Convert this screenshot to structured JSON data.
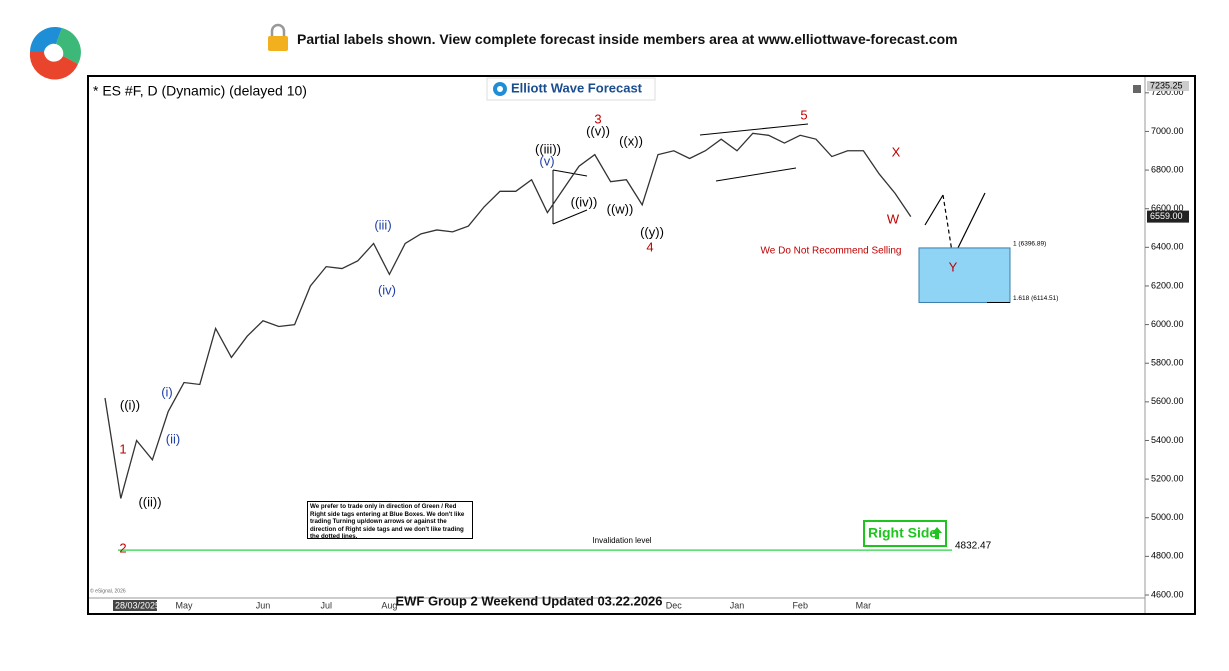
{
  "header": {
    "text": "Partial labels shown. View complete forecast inside members area at www.elliottwave-forecast.com"
  },
  "chart_data": {
    "type": "line",
    "title": "* ES #F, D (Dynamic) (delayed 10)",
    "logo": "Elliott Wave Forecast",
    "footer": "EWF Group 2 Weekend Updated 03.22.2026",
    "copyright": "© eSignal, 2026",
    "categories": [
      "28/03/2025",
      null,
      null,
      null,
      null,
      "May",
      null,
      null,
      null,
      null,
      "Jun",
      null,
      null,
      null,
      "Jul",
      null,
      null,
      null,
      "Aug",
      null,
      null,
      null,
      null,
      null,
      null,
      null,
      null,
      null,
      null,
      null,
      null,
      null,
      null,
      null,
      null,
      null,
      "Dec",
      null,
      null,
      null,
      "Jan",
      null,
      null,
      null,
      "Feb",
      null,
      null,
      null,
      "Mar",
      null,
      null,
      null
    ],
    "series": [
      {
        "name": "ES #F",
        "color": "#333333",
        "values": [
          5620,
          5100,
          5400,
          5300,
          5550,
          5700,
          5690,
          5980,
          5830,
          5940,
          6020,
          5990,
          6000,
          6200,
          6300,
          6290,
          6330,
          6420,
          6260,
          6420,
          6470,
          6490,
          6480,
          6510,
          6610,
          6690,
          6690,
          6750,
          6580,
          6700,
          6820,
          6880,
          6740,
          6750,
          6620,
          6880,
          6900,
          6860,
          6900,
          6960,
          6900,
          6990,
          6980,
          6940,
          6980,
          6960,
          6870,
          6900,
          6900,
          6780,
          6680,
          6559
        ]
      }
    ],
    "ylim": [
      4600,
      7235.25
    ],
    "yticks": [
      {
        "value": 4600,
        "label": "4600.00"
      },
      {
        "value": 4800,
        "label": "4800.00"
      },
      {
        "value": 5000,
        "label": "5000.00"
      },
      {
        "value": 5200,
        "label": "5200.00"
      },
      {
        "value": 5400,
        "label": "5400.00"
      },
      {
        "value": 5600,
        "label": "5600.00"
      },
      {
        "value": 5800,
        "label": "5800.00"
      },
      {
        "value": 6000,
        "label": "6000.00"
      },
      {
        "value": 6200,
        "label": "6200.00"
      },
      {
        "value": 6400,
        "label": "6400.00"
      },
      {
        "value": 6600,
        "label": "6600.00"
      },
      {
        "value": 6800,
        "label": "6800.00"
      },
      {
        "value": 7000,
        "label": "7000.00"
      },
      {
        "value": 7200,
        "label": "7200.00"
      }
    ],
    "last_price": {
      "value": 6559,
      "label": "6559.00"
    },
    "target_box": {
      "top": {
        "value": 6396.89,
        "label": "1 (6396.89)"
      },
      "bottom": {
        "value": 6114.51,
        "label": "1.618 (6114.51)"
      },
      "color": "#8fd3f5"
    },
    "invalidation": {
      "value": 4832.47,
      "text": "Invalidation level",
      "color": "#4cd964"
    },
    "warning": "We Do Not Recommend Selling",
    "right_side": "Right Side",
    "disclaimer": "We prefer to trade only in direction of Green / Red Right side tags entering at Blue Boxes. We don't like trading Turning up/down arrows or against the direction of Right side tags and we don't like trading the dotted lines.",
    "annotations": [
      {
        "text": "((i))",
        "color": "#000000"
      },
      {
        "text": "1",
        "color": "#c00000"
      },
      {
        "text": "2",
        "color": "#c00000"
      },
      {
        "text": "((ii))",
        "color": "#000000"
      },
      {
        "text": "(i)",
        "color": "#1f3fa8"
      },
      {
        "text": "(ii)",
        "color": "#1f3fa8"
      },
      {
        "text": "(iii)",
        "color": "#1f3fa8"
      },
      {
        "text": "(iv)",
        "color": "#1f3fa8"
      },
      {
        "text": "((iii))",
        "color": "#000000"
      },
      {
        "text": "(v)",
        "color": "#1f3fa8"
      },
      {
        "text": "((iv))",
        "color": "#000000"
      },
      {
        "text": "3",
        "color": "#c00000"
      },
      {
        "text": "((v))",
        "color": "#000000"
      },
      {
        "text": "((x))",
        "color": "#000000"
      },
      {
        "text": "((w))",
        "color": "#000000"
      },
      {
        "text": "((y))",
        "color": "#000000"
      },
      {
        "text": "4",
        "color": "#c00000"
      },
      {
        "text": "5",
        "color": "#c00000"
      },
      {
        "text": "X",
        "color": "#c00000"
      },
      {
        "text": "W",
        "color": "#c00000"
      },
      {
        "text": "Y",
        "color": "#c00000"
      }
    ]
  }
}
